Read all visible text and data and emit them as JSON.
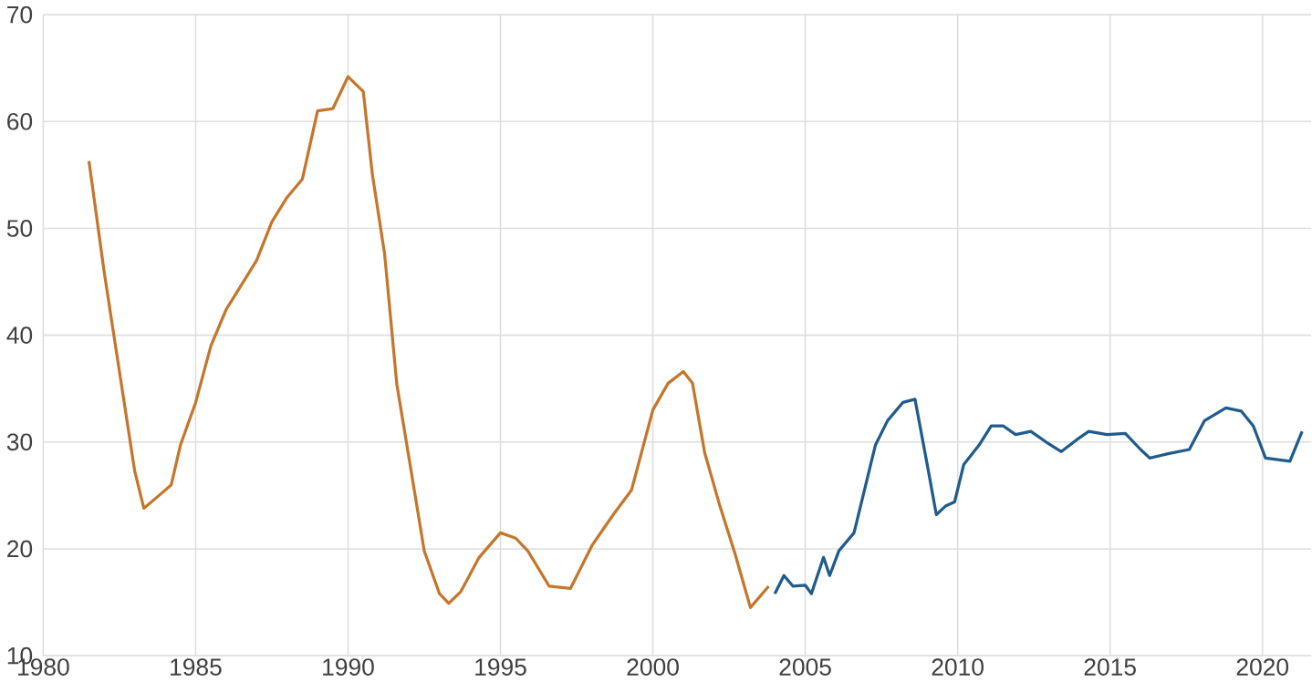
{
  "chart_data": {
    "type": "line",
    "series": [
      {
        "color": "#c5762b",
        "x": [
          1981.5,
          1982,
          1982.5,
          1983,
          1983.3,
          1983.8,
          1984.2,
          1984.5,
          1985,
          1985.5,
          1986,
          1986.5,
          1987,
          1987.5,
          1988,
          1988.5,
          1989,
          1989.5,
          1990,
          1990.5,
          1990.8,
          1991.2,
          1991.6,
          1992,
          1992.5,
          1993,
          1993.3,
          1993.7,
          1994.3,
          1995,
          1995.5,
          1995.9,
          1996.6,
          1997.3,
          1998,
          1998.7,
          1999.3,
          2000,
          2000.5,
          2001,
          2001.3,
          2001.7,
          2002.2,
          2002.7,
          2003.2,
          2003.8
        ],
        "values": [
          56.3,
          45.9,
          36.6,
          27.3,
          23.8,
          25,
          26,
          29.7,
          33.7,
          39,
          42.4,
          44.7,
          47,
          50.6,
          52.9,
          54.6,
          61,
          61.2,
          64.2,
          62.8,
          55,
          47.6,
          35.4,
          28.5,
          19.8,
          15.8,
          14.9,
          16,
          19.2,
          21.5,
          21,
          19.8,
          16.5,
          16.3,
          20.3,
          23.2,
          25.5,
          33,
          35.5,
          36.6,
          35.5,
          29,
          24,
          19.5,
          14.5,
          16.5
        ]
      },
      {
        "color": "#1f5b8c",
        "x": [
          2004.0,
          2004.3,
          2004.6,
          2005.0,
          2005.2,
          2005.6,
          2005.8,
          2006.1,
          2006.6,
          2007.3,
          2007.7,
          2008.2,
          2008.6,
          2009.0,
          2009.3,
          2009.6,
          2009.9,
          2010.2,
          2010.7,
          2011.1,
          2011.5,
          2011.9,
          2012.4,
          2012.9,
          2013.4,
          2013.9,
          2014.3,
          2014.9,
          2015.5,
          2016.0,
          2016.3,
          2016.9,
          2017.6,
          2018.1,
          2018.8,
          2019.3,
          2019.7,
          2020.1,
          2020.9,
          2021.3
        ],
        "values": [
          15.8,
          17.5,
          16.5,
          16.6,
          15.8,
          19.2,
          17.5,
          19.8,
          21.5,
          29.7,
          32,
          33.7,
          34,
          27.9,
          23.2,
          24,
          24.4,
          27.9,
          29.7,
          31.5,
          31.5,
          30.7,
          31,
          30,
          29.1,
          30.2,
          31,
          30.7,
          30.8,
          29.3,
          28.5,
          28.9,
          29.3,
          32,
          33.2,
          32.9,
          31.5,
          28.5,
          28.2,
          31
        ]
      }
    ],
    "xlim": [
      1980,
      2021.6
    ],
    "ylim": [
      10,
      70
    ],
    "xticks": [
      1980,
      1985,
      1990,
      1995,
      2000,
      2005,
      2010,
      2015,
      2020
    ],
    "yticks": [
      10,
      20,
      30,
      40,
      50,
      60,
      70
    ],
    "grid": true
  }
}
